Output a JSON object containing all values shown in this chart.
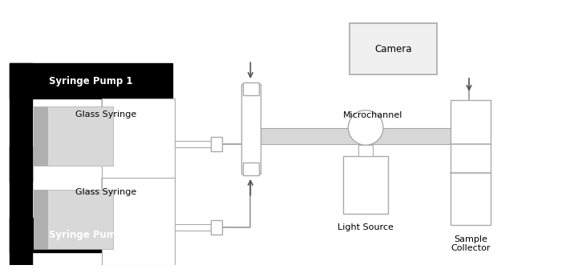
{
  "fig_width": 6.87,
  "fig_height": 3.24,
  "bg_color": "#ffffff",
  "black": "#000000",
  "white": "#ffffff",
  "light_gray": "#d8d8d8",
  "mid_gray": "#b0b0b0",
  "dark_gray": "#555555",
  "border_color": "#999999",
  "line_color": "#aaaaaa",
  "pump1_label": "Syringe Pump 1",
  "pump2_label": "Syringe Pump 2",
  "camera_label": "Camera",
  "microchannel_label": "Microchannel",
  "light_source_label": "Light Source",
  "sample_collector_label": "Sample\nCollector",
  "syringe1_label": "Glass Syringe",
  "syringe2_label": "Glass Syringe"
}
